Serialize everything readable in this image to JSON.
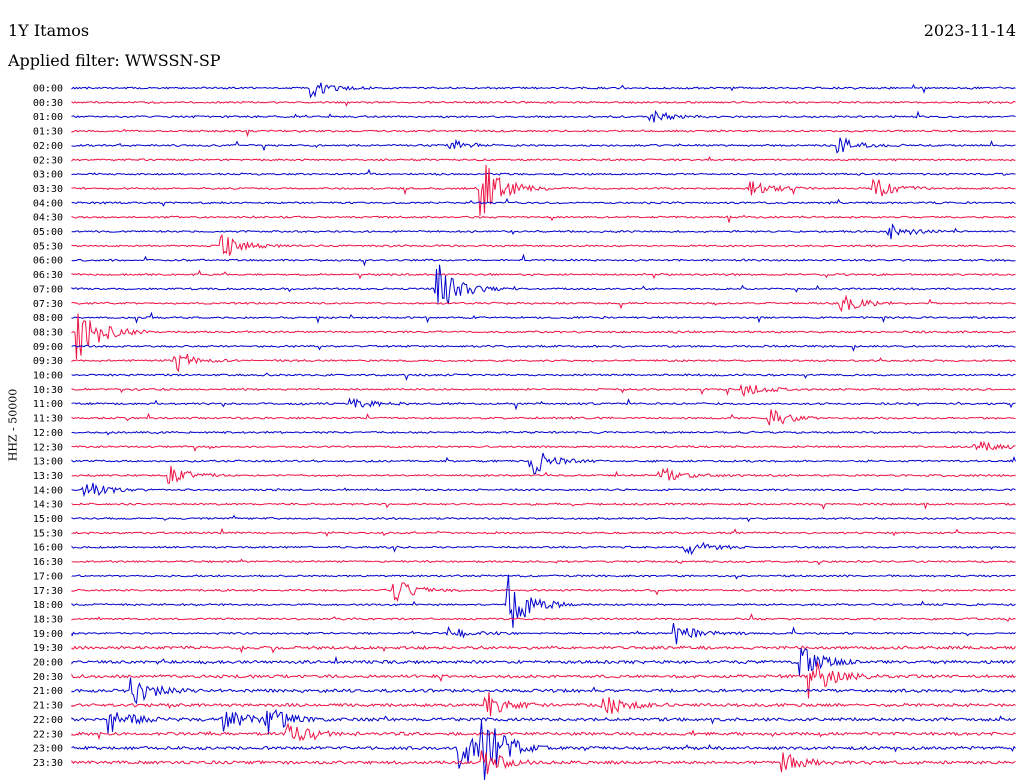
{
  "header": {
    "station": "1Y Itamos",
    "date": "2023-11-14",
    "filter": "Applied filter: WWSSN-SP"
  },
  "chart_data": {
    "type": "helicorder",
    "title": "1Y Itamos",
    "date": "2023-11-14",
    "ylabel": "HHZ - 50000",
    "xlabel": "",
    "trace_colors": [
      "#0000cc",
      "#ee1144"
    ],
    "rows": [
      "00:00",
      "00:30",
      "01:00",
      "01:30",
      "02:00",
      "02:30",
      "03:00",
      "03:30",
      "04:00",
      "04:30",
      "05:00",
      "05:30",
      "06:00",
      "06:30",
      "07:00",
      "07:30",
      "08:00",
      "08:30",
      "09:00",
      "09:30",
      "10:00",
      "10:30",
      "11:00",
      "11:30",
      "12:00",
      "12:30",
      "13:00",
      "13:30",
      "14:00",
      "14:30",
      "15:00",
      "15:30",
      "16:00",
      "16:30",
      "17:00",
      "17:30",
      "18:00",
      "18:30",
      "19:00",
      "19:30",
      "20:00",
      "20:30",
      "21:00",
      "21:30",
      "22:00",
      "22:30",
      "23:00",
      "23:30"
    ],
    "events": [
      {
        "row": 0,
        "minute": 7.6,
        "amp": 0.7
      },
      {
        "row": 2,
        "minute": 18.4,
        "amp": 0.5
      },
      {
        "row": 4,
        "minute": 12.0,
        "amp": 0.5
      },
      {
        "row": 4,
        "minute": 24.4,
        "amp": 0.6
      },
      {
        "row": 7,
        "minute": 13.0,
        "amp": 2.6
      },
      {
        "row": 7,
        "minute": 21.5,
        "amp": 0.8
      },
      {
        "row": 7,
        "minute": 25.5,
        "amp": 0.9
      },
      {
        "row": 10,
        "minute": 26.0,
        "amp": 0.6
      },
      {
        "row": 11,
        "minute": 4.8,
        "amp": 1.0
      },
      {
        "row": 14,
        "minute": 11.6,
        "amp": 2.2
      },
      {
        "row": 15,
        "minute": 24.5,
        "amp": 0.8
      },
      {
        "row": 17,
        "minute": 0.2,
        "amp": 2.6
      },
      {
        "row": 19,
        "minute": 3.3,
        "amp": 0.9
      },
      {
        "row": 21,
        "minute": 21.3,
        "amp": 0.6
      },
      {
        "row": 22,
        "minute": 8.9,
        "amp": 0.5
      },
      {
        "row": 23,
        "minute": 22.2,
        "amp": 0.7
      },
      {
        "row": 25,
        "minute": 28.7,
        "amp": 0.6
      },
      {
        "row": 26,
        "minute": 14.6,
        "amp": 1.2
      },
      {
        "row": 27,
        "minute": 3.1,
        "amp": 0.8
      },
      {
        "row": 27,
        "minute": 18.7,
        "amp": 0.7
      },
      {
        "row": 28,
        "minute": 0.4,
        "amp": 0.8
      },
      {
        "row": 32,
        "minute": 19.5,
        "amp": 0.7
      },
      {
        "row": 35,
        "minute": 10.2,
        "amp": 1.0
      },
      {
        "row": 36,
        "minute": 13.9,
        "amp": 2.4
      },
      {
        "row": 38,
        "minute": 12.0,
        "amp": 0.6
      },
      {
        "row": 38,
        "minute": 19.2,
        "amp": 0.8
      },
      {
        "row": 40,
        "minute": 23.2,
        "amp": 1.2
      },
      {
        "row": 41,
        "minute": 23.5,
        "amp": 1.6
      },
      {
        "row": 42,
        "minute": 1.9,
        "amp": 1.2
      },
      {
        "row": 43,
        "minute": 13.2,
        "amp": 1.0
      },
      {
        "row": 43,
        "minute": 16.9,
        "amp": 0.9
      },
      {
        "row": 44,
        "minute": 1.2,
        "amp": 1.0
      },
      {
        "row": 44,
        "minute": 4.8,
        "amp": 1.0
      },
      {
        "row": 44,
        "minute": 6.2,
        "amp": 1.2
      },
      {
        "row": 45,
        "minute": 6.9,
        "amp": 0.8
      },
      {
        "row": 46,
        "minute": 12.3,
        "amp": 2.0
      },
      {
        "row": 46,
        "minute": 13.1,
        "amp": 2.5
      },
      {
        "row": 47,
        "minute": 13.1,
        "amp": 1.0
      },
      {
        "row": 47,
        "minute": 22.6,
        "amp": 0.8
      }
    ]
  }
}
